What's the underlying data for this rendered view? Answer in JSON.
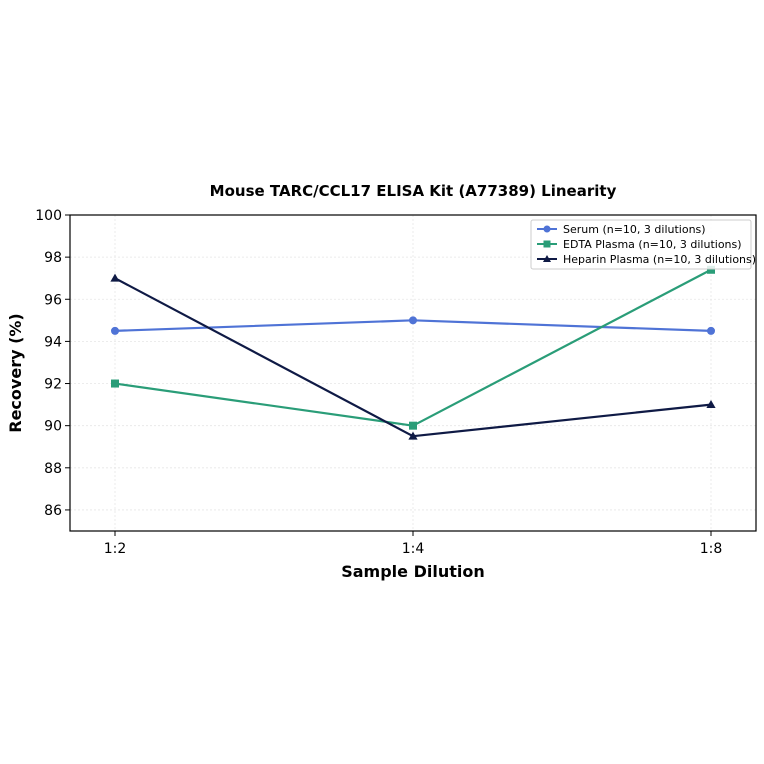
{
  "chart_data": {
    "type": "line",
    "title": "Mouse TARC/CCL17 ELISA Kit (A77389) Linearity",
    "xlabel": "Sample Dilution",
    "ylabel": "Recovery (%)",
    "categories": [
      "1:2",
      "1:4",
      "1:8"
    ],
    "ylim": [
      85,
      100
    ],
    "yticks": [
      86,
      88,
      90,
      92,
      94,
      96,
      98,
      100
    ],
    "grid": true,
    "legend_position": "top-right",
    "series": [
      {
        "name": "Serum (n=10, 3 dilutions)",
        "values": [
          94.5,
          95.0,
          94.5
        ],
        "color": "#4f73d6",
        "marker": "circle"
      },
      {
        "name": "EDTA Plasma (n=10, 3 dilutions)",
        "values": [
          92.0,
          90.0,
          97.4
        ],
        "color": "#2a9d78",
        "marker": "square"
      },
      {
        "name": "Heparin Plasma (n=10, 3 dilutions)",
        "values": [
          97.0,
          89.5,
          91.0
        ],
        "color": "#0f1a45",
        "marker": "triangle"
      }
    ]
  }
}
